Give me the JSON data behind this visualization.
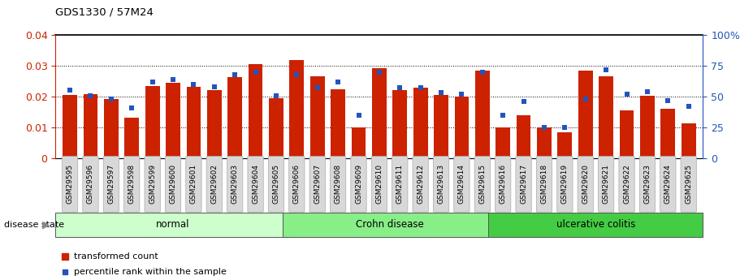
{
  "title": "GDS1330 / 57M24",
  "samples": [
    "GSM29595",
    "GSM29596",
    "GSM29597",
    "GSM29598",
    "GSM29599",
    "GSM29600",
    "GSM29601",
    "GSM29602",
    "GSM29603",
    "GSM29604",
    "GSM29605",
    "GSM29606",
    "GSM29607",
    "GSM29608",
    "GSM29609",
    "GSM29610",
    "GSM29611",
    "GSM29612",
    "GSM29613",
    "GSM29614",
    "GSM29615",
    "GSM29616",
    "GSM29617",
    "GSM29618",
    "GSM29619",
    "GSM29620",
    "GSM29621",
    "GSM29622",
    "GSM29623",
    "GSM29624",
    "GSM29625"
  ],
  "transformed_count": [
    0.0205,
    0.0208,
    0.0193,
    0.0132,
    0.0235,
    0.0245,
    0.0232,
    0.0222,
    0.0262,
    0.0305,
    0.0195,
    0.0318,
    0.0265,
    0.0225,
    0.0101,
    0.0292,
    0.0222,
    0.0228,
    0.0205,
    0.0199,
    0.0285,
    0.0101,
    0.014,
    0.01,
    0.0083,
    0.0285,
    0.0265,
    0.0155,
    0.0203,
    0.016,
    0.0112
  ],
  "percentile_rank": [
    55,
    51,
    48,
    41,
    62,
    64,
    60,
    58,
    68,
    70,
    51,
    68,
    57,
    62,
    35,
    70,
    57,
    57,
    53,
    52,
    70,
    35,
    46,
    25,
    25,
    48,
    72,
    52,
    54,
    47,
    42
  ],
  "groups": [
    {
      "label": "normal",
      "start": 0,
      "end": 11,
      "color": "#ccffcc"
    },
    {
      "label": "Crohn disease",
      "start": 11,
      "end": 21,
      "color": "#88ee88"
    },
    {
      "label": "ulcerative colitis",
      "start": 21,
      "end": 31,
      "color": "#44cc44"
    }
  ],
  "bar_color": "#cc2200",
  "dot_color": "#2255bb",
  "ylim_left": [
    0,
    0.04
  ],
  "ylim_right": [
    0,
    100
  ],
  "yticks_left": [
    0,
    0.01,
    0.02,
    0.03,
    0.04
  ],
  "ytick_labels_left": [
    "0",
    "0.01",
    "0.02",
    "0.03",
    "0.04"
  ],
  "yticks_right": [
    0,
    25,
    50,
    75,
    100
  ],
  "ytick_labels_right": [
    "0",
    "25",
    "50",
    "75",
    "100%"
  ],
  "left_color": "#cc2200",
  "right_color": "#2255bb"
}
